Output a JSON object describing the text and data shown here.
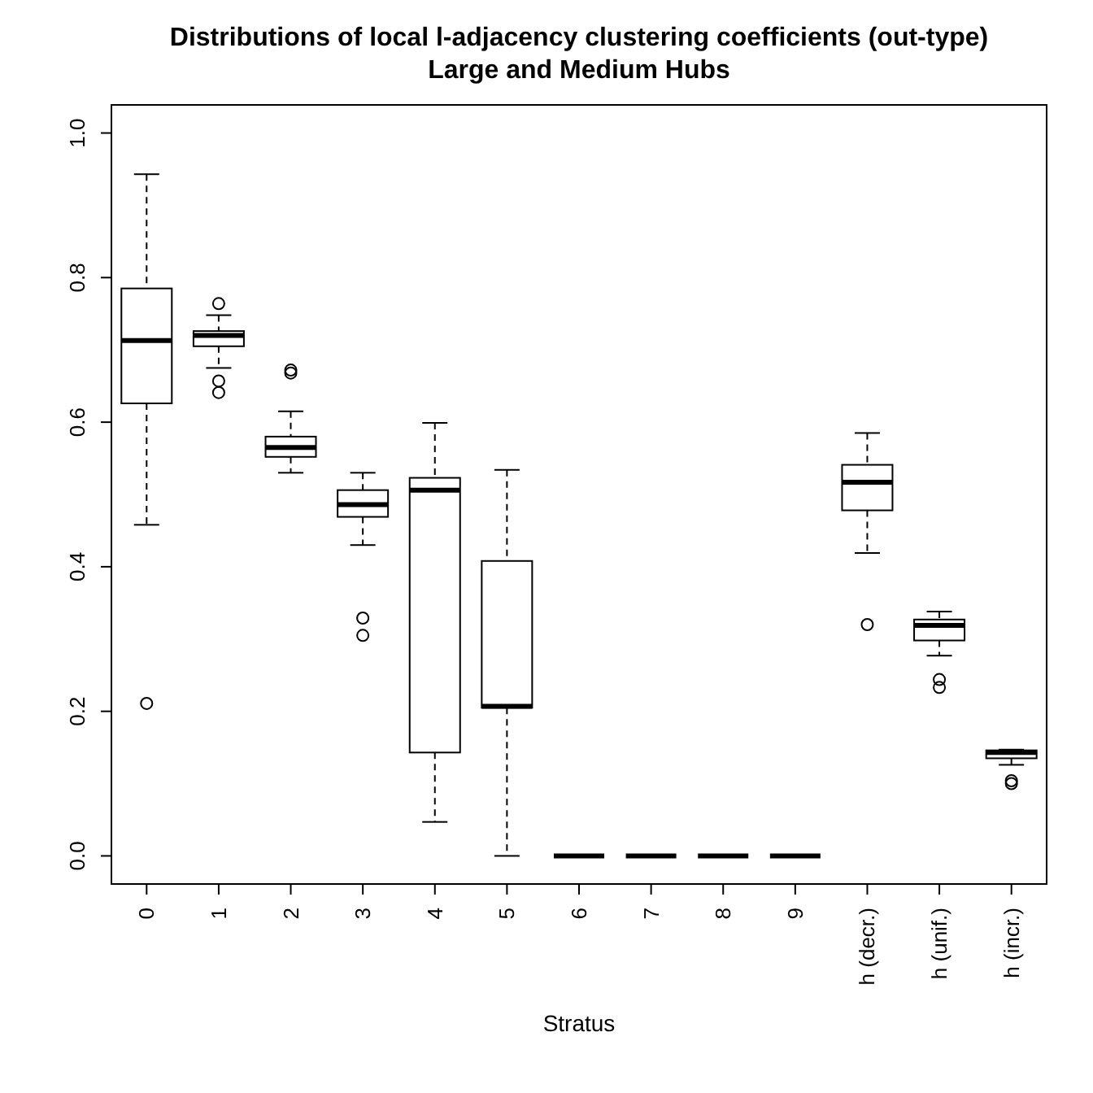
{
  "chart_data": {
    "type": "box",
    "title": "Distributions of local l-adjacency clustering coefficients (out-type)",
    "subtitle": "Large and Medium Hubs",
    "xlabel": "Stratus",
    "color": "#000000",
    "categories": [
      "0",
      "1",
      "2",
      "3",
      "4",
      "5",
      "6",
      "7",
      "8",
      "9",
      "h (decr.)",
      "h (unif.)",
      "h (incr.)"
    ],
    "boxes": [
      {
        "low": 0.458,
        "q1": 0.626,
        "median": 0.713,
        "q3": 0.785,
        "high": 0.943,
        "outliers": [
          0.211
        ]
      },
      {
        "low": 0.675,
        "q1": 0.705,
        "median": 0.72,
        "q3": 0.726,
        "high": 0.748,
        "outliers": [
          0.764,
          0.657,
          0.641
        ]
      },
      {
        "low": 0.53,
        "q1": 0.552,
        "median": 0.565,
        "q3": 0.58,
        "high": 0.615,
        "outliers": [
          0.672,
          0.668
        ]
      },
      {
        "low": 0.43,
        "q1": 0.469,
        "median": 0.486,
        "q3": 0.506,
        "high": 0.53,
        "outliers": [
          0.329,
          0.305
        ]
      },
      {
        "low": 0.047,
        "q1": 0.143,
        "median": 0.506,
        "q3": 0.523,
        "high": 0.599
      },
      {
        "low": 0,
        "q1": 0.205,
        "median": 0.207,
        "q3": 0.408,
        "high": 0.534
      },
      {
        "low": 0,
        "q1": 0,
        "median": 0,
        "q3": 0,
        "high": 0
      },
      {
        "low": 0,
        "q1": 0,
        "median": 0,
        "q3": 0,
        "high": 0
      },
      {
        "low": 0,
        "q1": 0,
        "median": 0,
        "q3": 0,
        "high": 0
      },
      {
        "low": 0,
        "q1": 0,
        "median": 0,
        "q3": 0,
        "high": 0
      },
      {
        "low": 0.419,
        "q1": 0.478,
        "median": 0.517,
        "q3": 0.541,
        "high": 0.585,
        "outliers": [
          0.32
        ]
      },
      {
        "low": 0.277,
        "q1": 0.298,
        "median": 0.319,
        "q3": 0.327,
        "high": 0.338,
        "outliers": [
          0.244,
          0.233
        ]
      },
      {
        "low": 0.126,
        "q1": 0.135,
        "median": 0.143,
        "q3": 0.146,
        "high": 0.147,
        "outliers": [
          0.104,
          0.1
        ]
      }
    ],
    "ylim": [
      -0.04,
      1.04
    ],
    "yticks": [
      {
        "value": 0,
        "label": "0.0"
      },
      {
        "value": 0.2,
        "label": "0.2"
      },
      {
        "value": 0.4,
        "label": "0.4"
      },
      {
        "value": 0.6,
        "label": "0.6"
      },
      {
        "value": 0.8,
        "label": "0.8"
      },
      {
        "value": 1,
        "label": "1.0"
      }
    ]
  }
}
